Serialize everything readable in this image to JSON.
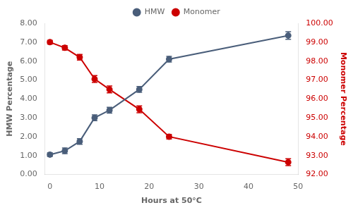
{
  "chart_data": {
    "type": "line",
    "xlabel": "Hours at 50°C",
    "ylabel": "HMW Percentage",
    "y2label": "Monomer Percentage",
    "x": [
      0,
      3,
      6,
      9,
      12,
      18,
      24,
      48
    ],
    "series": [
      {
        "name": "HMW",
        "color": "#4a5e7a",
        "marker": "circle",
        "values": [
          1.05,
          1.25,
          1.75,
          3.0,
          3.4,
          4.5,
          6.1,
          7.35
        ],
        "errors": [
          0.1,
          0.15,
          0.15,
          0.15,
          0.15,
          0.15,
          0.15,
          0.2
        ]
      },
      {
        "name": "Monomer",
        "color": "#cc0000",
        "marker": "circle",
        "axis": "y2",
        "values": [
          99.0,
          98.7,
          98.2,
          97.05,
          96.5,
          95.45,
          94.0,
          92.65
        ],
        "errors": [
          0.1,
          0.12,
          0.15,
          0.18,
          0.18,
          0.18,
          0.12,
          0.18
        ]
      }
    ],
    "xlim": [
      -1,
      50
    ],
    "xticks": [
      0,
      10,
      20,
      30,
      40,
      50
    ],
    "ylim": [
      0.0,
      8.0
    ],
    "yticks": [
      {
        "value": 0.0,
        "label": "0.00"
      },
      {
        "value": 1.0,
        "label": "1.00"
      },
      {
        "value": 2.0,
        "label": "2.00"
      },
      {
        "value": 3.0,
        "label": "3.00"
      },
      {
        "value": 4.0,
        "label": "4.00"
      },
      {
        "value": 5.0,
        "label": "5.00"
      },
      {
        "value": 6.0,
        "label": "6.00"
      },
      {
        "value": 7.0,
        "label": "7.00"
      },
      {
        "value": 8.0,
        "label": "8.00"
      }
    ],
    "y2lim": [
      92.0,
      100.0
    ],
    "y2ticks": [
      {
        "value": 92.0,
        "label": "92.00"
      },
      {
        "value": 93.0,
        "label": "93.00"
      },
      {
        "value": 94.0,
        "label": "94.00"
      },
      {
        "value": 95.0,
        "label": "95.00"
      },
      {
        "value": 96.0,
        "label": "96.00"
      },
      {
        "value": 97.0,
        "label": "97.00"
      },
      {
        "value": 98.0,
        "label": "98.00"
      },
      {
        "value": 99.0,
        "label": "99.00"
      },
      {
        "value": 100.0,
        "label": "100.00"
      }
    ],
    "grid": false,
    "legend": "top"
  }
}
